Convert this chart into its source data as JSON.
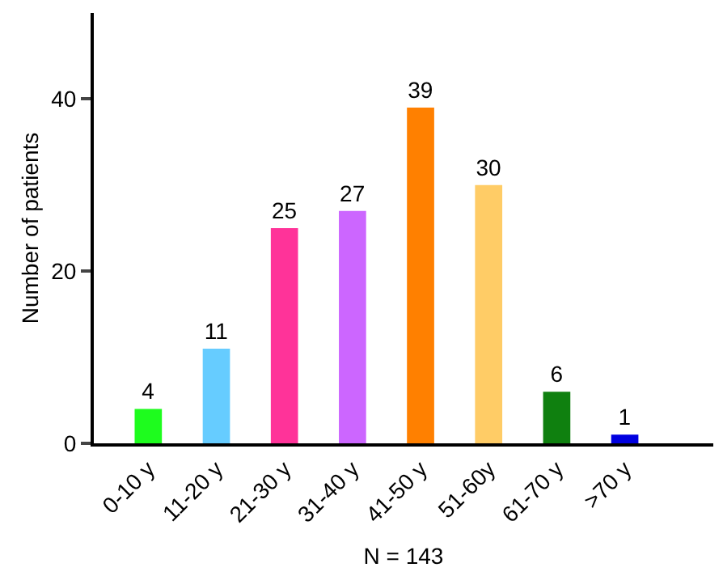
{
  "chart_data": {
    "type": "bar",
    "xlabel": "N = 143",
    "ylabel": "Number of patients",
    "categories": [
      "0-10 y",
      "11-20 y",
      "21-30 y",
      "31-40 y",
      "41-50 y",
      "51-60y",
      "61-70 y",
      ">70 y"
    ],
    "values": [
      4,
      11,
      25,
      27,
      39,
      30,
      6,
      1
    ],
    "colors": [
      "#1efc1e",
      "#66ccff",
      "#ff3399",
      "#cc66ff",
      "#ff8000",
      "#ffcc66",
      "#0f800f",
      "#0000e0"
    ],
    "ylim": [
      0,
      50
    ],
    "yticks": [
      0,
      20,
      40
    ],
    "data_labels": true
  }
}
